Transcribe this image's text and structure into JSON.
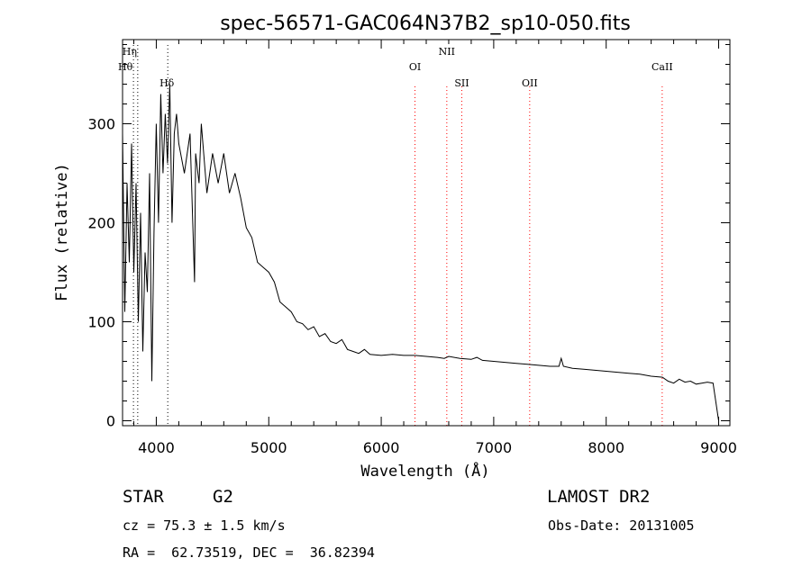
{
  "chart_data": {
    "type": "line",
    "title": "spec-56571-GAC064N37B2_sp10-050.fits",
    "xlabel": "Wavelength (Å)",
    "ylabel": "Flux (relative)",
    "xlim": [
      3700,
      9100
    ],
    "ylim": [
      -5,
      385
    ],
    "xticks": [
      4000,
      5000,
      6000,
      7000,
      8000,
      9000
    ],
    "yticks": [
      0,
      100,
      200,
      300
    ],
    "grid": false,
    "series": [
      {
        "x": [
          3700,
          3720,
          3740,
          3760,
          3780,
          3800,
          3820,
          3840,
          3860,
          3880,
          3900,
          3920,
          3940,
          3960,
          3980,
          4000,
          4020,
          4040,
          4060,
          4080,
          4100,
          4120,
          4140,
          4160,
          4180,
          4200,
          4250,
          4300,
          4340,
          4350,
          4380,
          4400,
          4450,
          4500,
          4550,
          4600,
          4650,
          4700,
          4750,
          4800,
          4850,
          4900,
          4950,
          5000,
          5050,
          5100,
          5150,
          5200,
          5250,
          5300,
          5350,
          5400,
          5450,
          5500,
          5550,
          5600,
          5650,
          5700,
          5750,
          5800,
          5850,
          5900,
          6000,
          6100,
          6200,
          6300,
          6400,
          6500,
          6560,
          6600,
          6700,
          6800,
          6850,
          6900,
          7000,
          7100,
          7200,
          7300,
          7400,
          7500,
          7580,
          7600,
          7620,
          7700,
          7800,
          7900,
          8000,
          8100,
          8200,
          8300,
          8400,
          8500,
          8550,
          8600,
          8650,
          8700,
          8750,
          8800,
          8850,
          8900,
          8950,
          9000
        ],
        "y": [
          290,
          110,
          240,
          160,
          280,
          150,
          240,
          100,
          210,
          70,
          170,
          130,
          250,
          40,
          190,
          300,
          200,
          330,
          250,
          310,
          260,
          340,
          200,
          290,
          310,
          280,
          250,
          290,
          140,
          270,
          240,
          300,
          230,
          270,
          240,
          270,
          230,
          250,
          225,
          195,
          185,
          160,
          155,
          150,
          140,
          120,
          115,
          110,
          100,
          98,
          92,
          95,
          85,
          88,
          80,
          78,
          82,
          72,
          70,
          68,
          72,
          67,
          66,
          67,
          66,
          66,
          65,
          64,
          63,
          65,
          63,
          62,
          64,
          61,
          60,
          59,
          58,
          57,
          56,
          55,
          55,
          63,
          55,
          53,
          52,
          51,
          50,
          49,
          48,
          47,
          45,
          44,
          40,
          38,
          42,
          39,
          40,
          37,
          38,
          39,
          38,
          0
        ]
      }
    ],
    "lines": [
      {
        "name": "Hη",
        "wave": 3835
      },
      {
        "name": "Hθ",
        "wave": 3797
      },
      {
        "name": "Hδ",
        "wave": 4102
      },
      {
        "name": "OI",
        "wave": 6300
      },
      {
        "name": "NII",
        "wave": 6583
      },
      {
        "name": "SII",
        "wave": 6716
      },
      {
        "name": "OII",
        "wave": 7320
      },
      {
        "name": "CaII",
        "wave": 8498
      }
    ]
  },
  "info": {
    "class_label": "STAR",
    "subclass": "G2",
    "survey": "LAMOST DR2",
    "cz": "cz = 75.3 ± 1.5 km/s",
    "obs_date": "Obs-Date: 20131005",
    "radec": "RA =  62.73519, DEC =  36.82394"
  },
  "colors": {
    "spectrum": "#000000",
    "line_marker": "#ff0000",
    "axes": "#000000"
  }
}
